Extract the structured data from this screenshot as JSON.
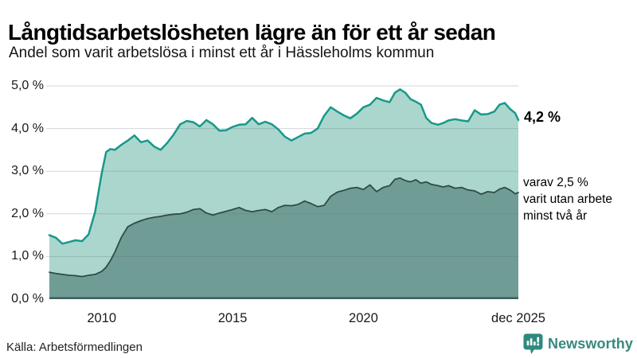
{
  "header": {
    "title": "Långtidsarbetslösheten lägre än för ett år sedan",
    "subtitle": "Andel som varit arbetslösa i minst ett år i Hässleholms kommun"
  },
  "annotations": {
    "primary": "4,2 %",
    "secondary_lines": [
      "varav 2,5 %",
      "varit utan arbete",
      "minst två år"
    ]
  },
  "footer": {
    "source": "Källa: Arbetsförmedlingen",
    "brand": "Newsworthy"
  },
  "colors": {
    "accent_line": "#17998a",
    "light_fill": "#abd6ce",
    "dark_fill": "#6f9d96",
    "dark_line": "#2e4c47",
    "gridline": "#5d6a75",
    "baseline": "#3c5e58",
    "brand_teal": "#2f8a7e",
    "text": "#111111"
  },
  "chart_data": {
    "type": "area",
    "title": "Långtidsarbetslösheten lägre än för ett år sedan",
    "subtitle": "Andel som varit arbetslösa i minst ett år i Hässleholms kommun",
    "x_range": [
      2008,
      2025.92
    ],
    "y_range": [
      0,
      5
    ],
    "grid": true,
    "legend_position": "right-annotations",
    "y_ticks": [
      {
        "value": 5,
        "label": "5,0 %"
      },
      {
        "value": 4,
        "label": "4,0 %"
      },
      {
        "value": 3,
        "label": "3,0 %"
      },
      {
        "value": 2,
        "label": "2,0 %"
      },
      {
        "value": 1,
        "label": "1,0 %"
      },
      {
        "value": 0,
        "label": "0,0 %"
      }
    ],
    "x_ticks": [
      {
        "value": 2010,
        "label": "2010"
      },
      {
        "value": 2015,
        "label": "2015"
      },
      {
        "value": 2020,
        "label": "2020"
      },
      {
        "value": 2025.92,
        "label": "dec 2025"
      }
    ],
    "x": [
      2008.0,
      2008.25,
      2008.5,
      2008.75,
      2009.0,
      2009.25,
      2009.5,
      2009.75,
      2010.0,
      2010.17,
      2010.33,
      2010.5,
      2010.75,
      2011.0,
      2011.25,
      2011.5,
      2011.75,
      2012.0,
      2012.25,
      2012.5,
      2012.75,
      2013.0,
      2013.25,
      2013.5,
      2013.75,
      2014.0,
      2014.25,
      2014.5,
      2014.75,
      2015.0,
      2015.25,
      2015.5,
      2015.75,
      2016.0,
      2016.25,
      2016.5,
      2016.75,
      2017.0,
      2017.25,
      2017.5,
      2017.75,
      2018.0,
      2018.25,
      2018.5,
      2018.75,
      2019.0,
      2019.25,
      2019.5,
      2019.75,
      2020.0,
      2020.25,
      2020.5,
      2020.75,
      2021.0,
      2021.2,
      2021.4,
      2021.6,
      2021.8,
      2022.0,
      2022.2,
      2022.4,
      2022.6,
      2022.85,
      2023.05,
      2023.25,
      2023.5,
      2023.75,
      2024.0,
      2024.25,
      2024.5,
      2024.75,
      2025.0,
      2025.2,
      2025.4,
      2025.6,
      2025.8,
      2025.92
    ],
    "series": [
      {
        "name": "Arbetslösa minst ett år",
        "end_value_label": "4,2 %",
        "line_color": "#17998a",
        "fill_color": "#abd6ce",
        "values": [
          1.5,
          1.44,
          1.3,
          1.34,
          1.38,
          1.36,
          1.52,
          2.05,
          2.95,
          3.45,
          3.52,
          3.5,
          3.62,
          3.72,
          3.84,
          3.68,
          3.72,
          3.58,
          3.5,
          3.66,
          3.86,
          4.1,
          4.18,
          4.15,
          4.05,
          4.2,
          4.1,
          3.95,
          3.96,
          4.04,
          4.09,
          4.1,
          4.25,
          4.1,
          4.16,
          4.1,
          3.98,
          3.81,
          3.72,
          3.8,
          3.88,
          3.9,
          4.0,
          4.3,
          4.5,
          4.4,
          4.31,
          4.24,
          4.35,
          4.5,
          4.56,
          4.72,
          4.66,
          4.62,
          4.84,
          4.92,
          4.84,
          4.69,
          4.63,
          4.56,
          4.25,
          4.13,
          4.09,
          4.13,
          4.19,
          4.22,
          4.19,
          4.17,
          4.43,
          4.33,
          4.34,
          4.4,
          4.56,
          4.6,
          4.46,
          4.36,
          4.2
        ]
      },
      {
        "name": "varav utan arbete minst två år",
        "end_value_label": "2,5 %",
        "line_color": "#2e4c47",
        "fill_color": "#6f9d96",
        "values": [
          0.63,
          0.6,
          0.58,
          0.56,
          0.55,
          0.53,
          0.56,
          0.58,
          0.65,
          0.75,
          0.9,
          1.1,
          1.45,
          1.7,
          1.78,
          1.84,
          1.89,
          1.92,
          1.94,
          1.97,
          1.99,
          2.0,
          2.04,
          2.1,
          2.12,
          2.02,
          1.97,
          2.02,
          2.06,
          2.1,
          2.15,
          2.08,
          2.05,
          2.08,
          2.1,
          2.05,
          2.15,
          2.2,
          2.19,
          2.22,
          2.3,
          2.24,
          2.17,
          2.2,
          2.41,
          2.51,
          2.55,
          2.6,
          2.62,
          2.57,
          2.68,
          2.52,
          2.62,
          2.66,
          2.81,
          2.84,
          2.78,
          2.75,
          2.8,
          2.72,
          2.75,
          2.69,
          2.66,
          2.63,
          2.66,
          2.6,
          2.62,
          2.56,
          2.54,
          2.46,
          2.52,
          2.5,
          2.58,
          2.62,
          2.56,
          2.47,
          2.5
        ]
      }
    ]
  }
}
